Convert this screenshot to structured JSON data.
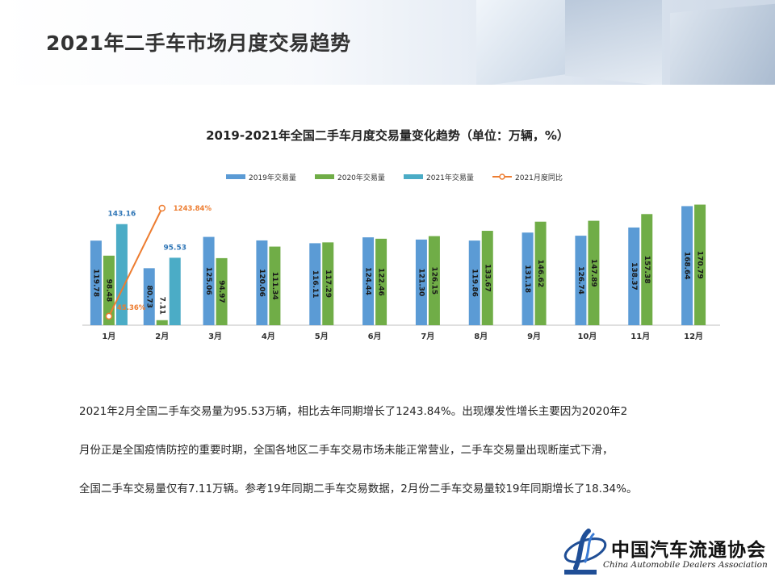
{
  "page": {
    "title": "2021年二手车市场月度交易趋势",
    "paragraphs": [
      "2021年2月全国二手车交易量为95.53万辆，相比去年同期增长了1243.84%。出现爆发性增长主要因为2020年2",
      "月份正是全国疫情防控的重要时期，全国各地区二手车交易市场未能正常营业，二手车交易量出现断崖式下滑，",
      "全国二手车交易量仅有7.11万辆。参考19年同期二手车交易数据，2月份二手车交易量较19年同期增长了18.34%。"
    ],
    "logo": {
      "name_cn": "中国汽车流通协会",
      "name_en": "China Automobile Dealers Association"
    }
  },
  "chart_data": {
    "type": "bar",
    "title": "2019-2021年全国二手车月度交易量变化趋势（单位：万辆，%）",
    "categories": [
      "1月",
      "2月",
      "3月",
      "4月",
      "5月",
      "6月",
      "7月",
      "8月",
      "9月",
      "10月",
      "11月",
      "12月"
    ],
    "series": [
      {
        "name": "2019年交易量",
        "color": "#5b9bd5",
        "values": [
          119.78,
          80.73,
          125.06,
          120.06,
          116.11,
          124.44,
          121.3,
          119.86,
          131.18,
          126.74,
          138.37,
          168.64
        ]
      },
      {
        "name": "2020年交易量",
        "color": "#70ad47",
        "values": [
          98.48,
          7.11,
          94.97,
          111.34,
          117.29,
          122.46,
          126.15,
          133.67,
          146.62,
          147.89,
          157.38,
          170.79
        ]
      },
      {
        "name": "2021年交易量",
        "color": "#4bacc6",
        "values": [
          143.16,
          95.53,
          null,
          null,
          null,
          null,
          null,
          null,
          null,
          null,
          null,
          null
        ]
      }
    ],
    "line_series": {
      "name": "2021月度同比",
      "color": "#ed7d31",
      "values": [
        45.36,
        1243.84
      ],
      "labels": [
        "45.36%",
        "1243.84%"
      ]
    },
    "legend_position": "top",
    "ylim": [
      0,
      180
    ],
    "line_ylim": [
      0,
      1500
    ],
    "grid": false
  }
}
